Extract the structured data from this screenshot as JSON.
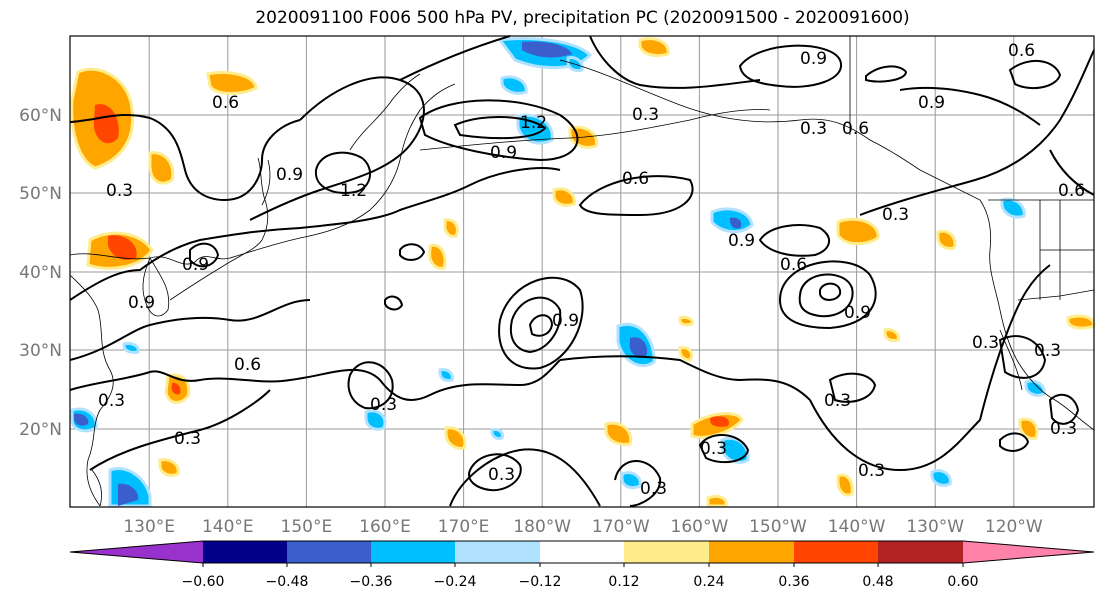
{
  "title": "2020091100 F006 500 hPa PV, precipitation PC (2020091500 - 2020091600)",
  "map": {
    "lon_labels": [
      "130°E",
      "140°E",
      "150°E",
      "160°E",
      "170°E",
      "180°W",
      "170°W",
      "160°W",
      "150°W",
      "140°W",
      "130°W",
      "120°W"
    ],
    "lat_labels": [
      "60°N",
      "50°N",
      "40°N",
      "30°N",
      "20°N"
    ],
    "contour_color": "#000000",
    "contour_labels": [
      "0.3",
      "0.6",
      "0.9",
      "1.2"
    ]
  },
  "colorbar": {
    "ticks": [
      "−0.60",
      "−0.48",
      "−0.36",
      "−0.24",
      "−0.12",
      "0.12",
      "0.24",
      "0.36",
      "0.48",
      "0.60"
    ],
    "colors": [
      "#9932cc",
      "#00008b",
      "#3a5fcd",
      "#00bfff",
      "#b0e2ff",
      "#ffffff",
      "#ffec8b",
      "#ffa500",
      "#ff4500",
      "#b22222",
      "#ff82ab"
    ]
  }
}
